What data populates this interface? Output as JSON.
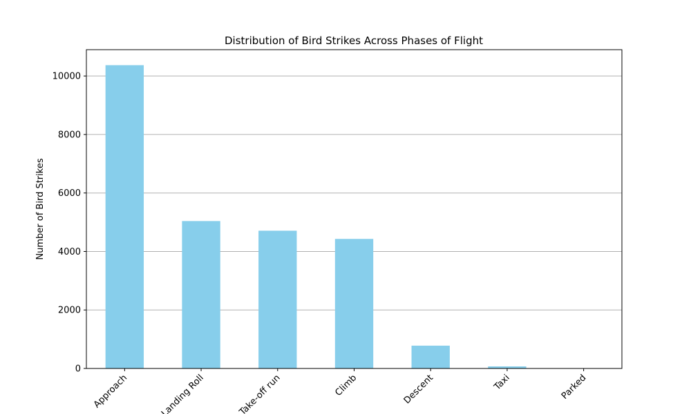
{
  "chart_data": {
    "type": "bar",
    "title": "Distribution of Bird Strikes Across Phases of Flight",
    "xlabel": "",
    "ylabel": "Number of Bird Strikes",
    "categories": [
      "Approach",
      "Landing Roll",
      "Take-off run",
      "Climb",
      "Descent",
      "Taxi",
      "Parked"
    ],
    "values": [
      10370,
      5040,
      4710,
      4430,
      780,
      70,
      5
    ],
    "ylim": [
      0,
      10900
    ],
    "yticks": [
      0,
      2000,
      4000,
      6000,
      8000,
      10000
    ],
    "grid": "y",
    "bar_color": "#87CEEB",
    "grid_color": "#b0b0b0",
    "xtick_rotation": 45
  }
}
